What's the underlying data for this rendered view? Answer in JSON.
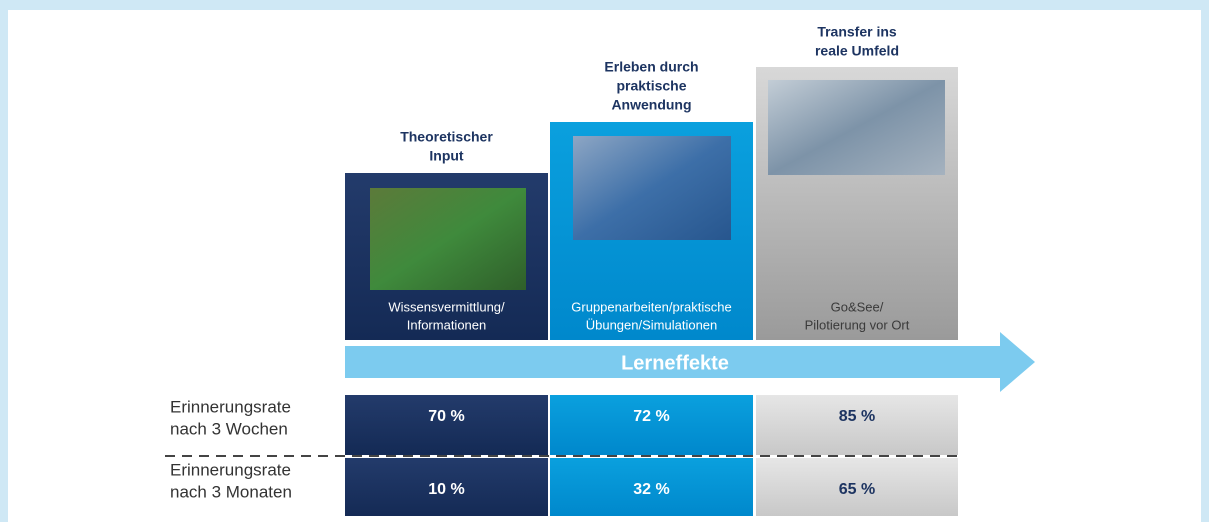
{
  "columns": [
    {
      "heading": [
        "Theoretischer",
        "Input"
      ],
      "caption": [
        "Wissensvermittlung/",
        "Informationen"
      ]
    },
    {
      "heading": [
        "Erleben durch",
        "praktische",
        "Anwendung"
      ],
      "caption": [
        "Gruppenarbeiten/praktische",
        "Übungen/Simulationen"
      ]
    },
    {
      "heading": [
        "Transfer ins",
        "reale Umfeld"
      ],
      "caption": [
        "Go&See/",
        "Pilotierung vor Ort"
      ]
    }
  ],
  "arrow": {
    "label": "Lerneffekte"
  },
  "rows": [
    {
      "label": [
        "Erinnerungsrate",
        "nach 3 Wochen"
      ],
      "values": [
        "70 %",
        "72 %",
        "85 %"
      ]
    },
    {
      "label": [
        "Erinnerungsrate",
        "nach 3 Monaten"
      ],
      "values": [
        "10 %",
        "32 %",
        "65 %"
      ]
    }
  ]
}
